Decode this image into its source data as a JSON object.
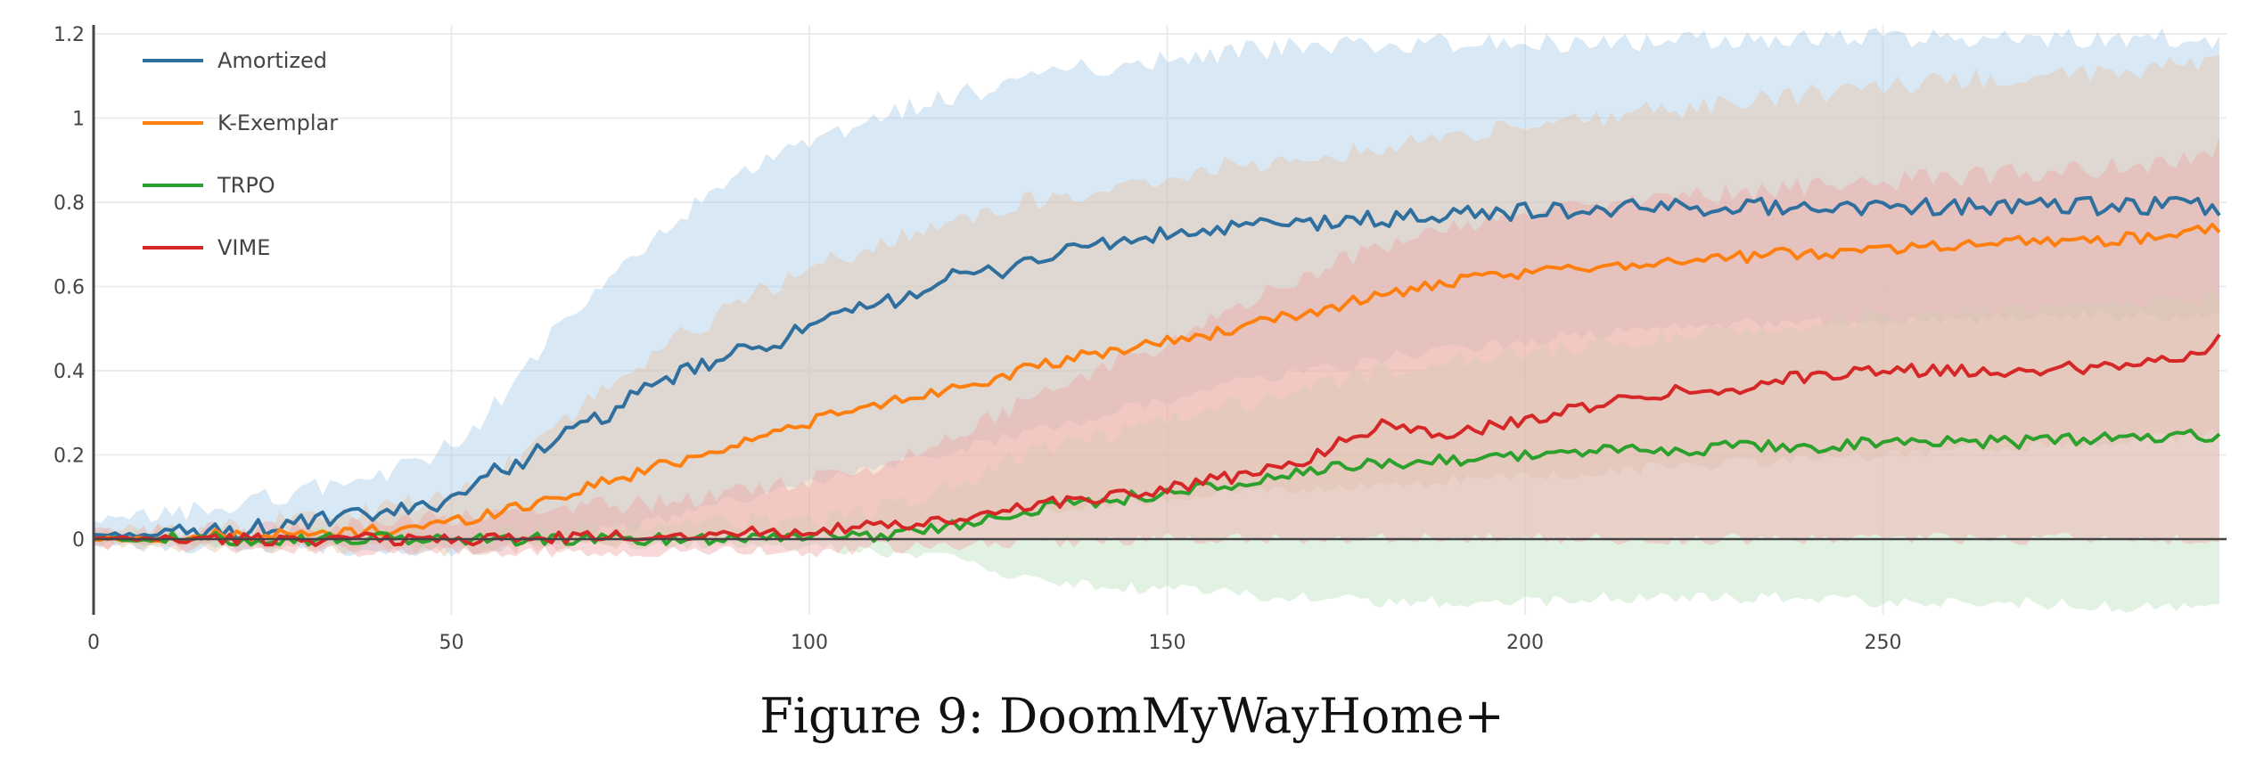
{
  "caption": "Figure 9: DoomMyWayHome+",
  "chart_data": {
    "type": "line",
    "title": "",
    "xlabel": "",
    "ylabel": "",
    "xlim": [
      0,
      298
    ],
    "ylim": [
      -0.18,
      1.2
    ],
    "xticks": [
      0,
      50,
      100,
      150,
      200,
      250
    ],
    "yticks": [
      0,
      0.2,
      0.4,
      0.6,
      0.8,
      1,
      1.2
    ],
    "ytick_labels": [
      "0",
      "0.2",
      "0.4",
      "0.6",
      "0.8",
      "1",
      "1.2"
    ],
    "grid": true,
    "legend": "top-left, inside",
    "series": [
      {
        "name": "Amortized",
        "color": "#2e6f9e",
        "band_color": "#a9cce9",
        "x": [
          0,
          10,
          20,
          30,
          40,
          45,
          50,
          55,
          60,
          65,
          70,
          75,
          80,
          85,
          90,
          95,
          100,
          105,
          110,
          115,
          120,
          125,
          130,
          135,
          140,
          145,
          150,
          155,
          160,
          170,
          180,
          190,
          200,
          210,
          220,
          230,
          240,
          250,
          260,
          270,
          280,
          290,
          297
        ],
        "y": [
          0.01,
          0.01,
          0.02,
          0.04,
          0.06,
          0.07,
          0.1,
          0.15,
          0.19,
          0.24,
          0.28,
          0.33,
          0.38,
          0.41,
          0.44,
          0.47,
          0.5,
          0.53,
          0.56,
          0.59,
          0.62,
          0.63,
          0.66,
          0.68,
          0.7,
          0.71,
          0.72,
          0.73,
          0.74,
          0.75,
          0.76,
          0.77,
          0.78,
          0.78,
          0.79,
          0.79,
          0.79,
          0.79,
          0.79,
          0.79,
          0.79,
          0.79,
          0.79
        ],
        "upper": [
          0.03,
          0.06,
          0.08,
          0.12,
          0.15,
          0.18,
          0.22,
          0.3,
          0.4,
          0.5,
          0.58,
          0.66,
          0.74,
          0.8,
          0.86,
          0.9,
          0.94,
          0.97,
          1.0,
          1.03,
          1.05,
          1.07,
          1.09,
          1.11,
          1.12,
          1.13,
          1.14,
          1.15,
          1.16,
          1.17,
          1.17,
          1.18,
          1.18,
          1.18,
          1.18,
          1.19,
          1.19,
          1.19,
          1.19,
          1.19,
          1.19,
          1.19,
          1.18
        ],
        "lower": [
          -0.01,
          -0.02,
          -0.02,
          -0.02,
          -0.03,
          -0.03,
          -0.03,
          -0.02,
          -0.01,
          0.0,
          0.02,
          0.03,
          0.05,
          0.07,
          0.09,
          0.11,
          0.13,
          0.15,
          0.17,
          0.19,
          0.21,
          0.23,
          0.25,
          0.27,
          0.29,
          0.31,
          0.33,
          0.35,
          0.37,
          0.4,
          0.43,
          0.45,
          0.47,
          0.49,
          0.5,
          0.51,
          0.52,
          0.52,
          0.52,
          0.53,
          0.53,
          0.53,
          0.53
        ]
      },
      {
        "name": "K-Exemplar",
        "color": "#ff7f0e",
        "band_color": "#e7c4a8",
        "x": [
          0,
          10,
          20,
          30,
          40,
          50,
          55,
          60,
          65,
          70,
          75,
          80,
          85,
          90,
          95,
          100,
          110,
          120,
          130,
          140,
          150,
          160,
          170,
          180,
          190,
          200,
          210,
          220,
          230,
          240,
          250,
          260,
          270,
          280,
          290,
          297
        ],
        "y": [
          0.0,
          0.0,
          0.01,
          0.01,
          0.02,
          0.04,
          0.06,
          0.08,
          0.1,
          0.13,
          0.15,
          0.18,
          0.2,
          0.23,
          0.25,
          0.28,
          0.32,
          0.36,
          0.4,
          0.44,
          0.47,
          0.5,
          0.54,
          0.58,
          0.61,
          0.63,
          0.65,
          0.66,
          0.67,
          0.68,
          0.69,
          0.7,
          0.71,
          0.71,
          0.72,
          0.74
        ],
        "upper": [
          0.01,
          0.02,
          0.03,
          0.05,
          0.07,
          0.1,
          0.15,
          0.2,
          0.27,
          0.34,
          0.4,
          0.46,
          0.51,
          0.56,
          0.6,
          0.64,
          0.7,
          0.76,
          0.8,
          0.83,
          0.86,
          0.89,
          0.91,
          0.93,
          0.96,
          0.98,
          1.0,
          1.02,
          1.04,
          1.06,
          1.07,
          1.09,
          1.1,
          1.11,
          1.12,
          1.13
        ],
        "lower": [
          -0.01,
          -0.02,
          -0.02,
          -0.02,
          -0.02,
          -0.03,
          -0.03,
          -0.02,
          -0.02,
          -0.01,
          -0.01,
          0.0,
          0.0,
          0.01,
          0.01,
          0.02,
          0.03,
          0.04,
          0.06,
          0.08,
          0.1,
          0.11,
          0.12,
          0.13,
          0.14,
          0.15,
          0.16,
          0.17,
          0.18,
          0.19,
          0.2,
          0.21,
          0.22,
          0.23,
          0.24,
          0.25
        ]
      },
      {
        "name": "TRPO",
        "color": "#2ca02c",
        "band_color": "#bfe3bf",
        "x": [
          0,
          20,
          40,
          60,
          80,
          100,
          110,
          120,
          125,
          130,
          140,
          150,
          160,
          170,
          180,
          190,
          200,
          210,
          220,
          230,
          240,
          250,
          260,
          270,
          280,
          290,
          297
        ],
        "y": [
          0.0,
          0.0,
          0.0,
          0.0,
          0.0,
          0.01,
          0.01,
          0.03,
          0.05,
          0.07,
          0.09,
          0.11,
          0.13,
          0.16,
          0.18,
          0.19,
          0.2,
          0.21,
          0.21,
          0.22,
          0.22,
          0.23,
          0.23,
          0.23,
          0.24,
          0.24,
          0.25
        ],
        "upper": [
          0.01,
          0.01,
          0.01,
          0.02,
          0.03,
          0.05,
          0.07,
          0.12,
          0.16,
          0.2,
          0.24,
          0.28,
          0.32,
          0.36,
          0.4,
          0.42,
          0.44,
          0.46,
          0.48,
          0.5,
          0.52,
          0.53,
          0.54,
          0.55,
          0.56,
          0.57,
          0.58
        ],
        "lower": [
          -0.01,
          -0.01,
          -0.01,
          -0.01,
          -0.01,
          -0.02,
          -0.03,
          -0.05,
          -0.07,
          -0.09,
          -0.11,
          -0.12,
          -0.13,
          -0.14,
          -0.15,
          -0.15,
          -0.15,
          -0.14,
          -0.14,
          -0.14,
          -0.14,
          -0.15,
          -0.15,
          -0.15,
          -0.16,
          -0.16,
          -0.16
        ]
      },
      {
        "name": "VIME",
        "color": "#d62728",
        "band_color": "#f0a8a8",
        "x": [
          0,
          20,
          40,
          60,
          80,
          100,
          110,
          120,
          125,
          130,
          140,
          150,
          160,
          170,
          175,
          180,
          185,
          190,
          200,
          210,
          220,
          230,
          240,
          250,
          260,
          270,
          280,
          290,
          295,
          297
        ],
        "y": [
          0.0,
          0.0,
          0.0,
          0.0,
          0.01,
          0.02,
          0.03,
          0.04,
          0.06,
          0.08,
          0.1,
          0.12,
          0.15,
          0.19,
          0.24,
          0.27,
          0.26,
          0.25,
          0.28,
          0.32,
          0.35,
          0.36,
          0.39,
          0.4,
          0.4,
          0.4,
          0.41,
          0.43,
          0.45,
          0.48
        ],
        "upper": [
          0.01,
          0.02,
          0.04,
          0.06,
          0.09,
          0.14,
          0.18,
          0.24,
          0.28,
          0.33,
          0.4,
          0.47,
          0.55,
          0.63,
          0.66,
          0.7,
          0.72,
          0.74,
          0.77,
          0.8,
          0.81,
          0.82,
          0.84,
          0.85,
          0.86,
          0.87,
          0.88,
          0.9,
          0.91,
          0.93
        ],
        "lower": [
          -0.01,
          -0.02,
          -0.03,
          -0.03,
          -0.03,
          -0.03,
          -0.02,
          -0.02,
          -0.01,
          -0.01,
          -0.01,
          0.0,
          0.0,
          0.0,
          0.0,
          0.0,
          0.0,
          0.0,
          0.0,
          0.0,
          0.0,
          0.0,
          0.0,
          0.0,
          0.0,
          0.0,
          0.0,
          0.0,
          0.0,
          0.0
        ]
      }
    ]
  }
}
